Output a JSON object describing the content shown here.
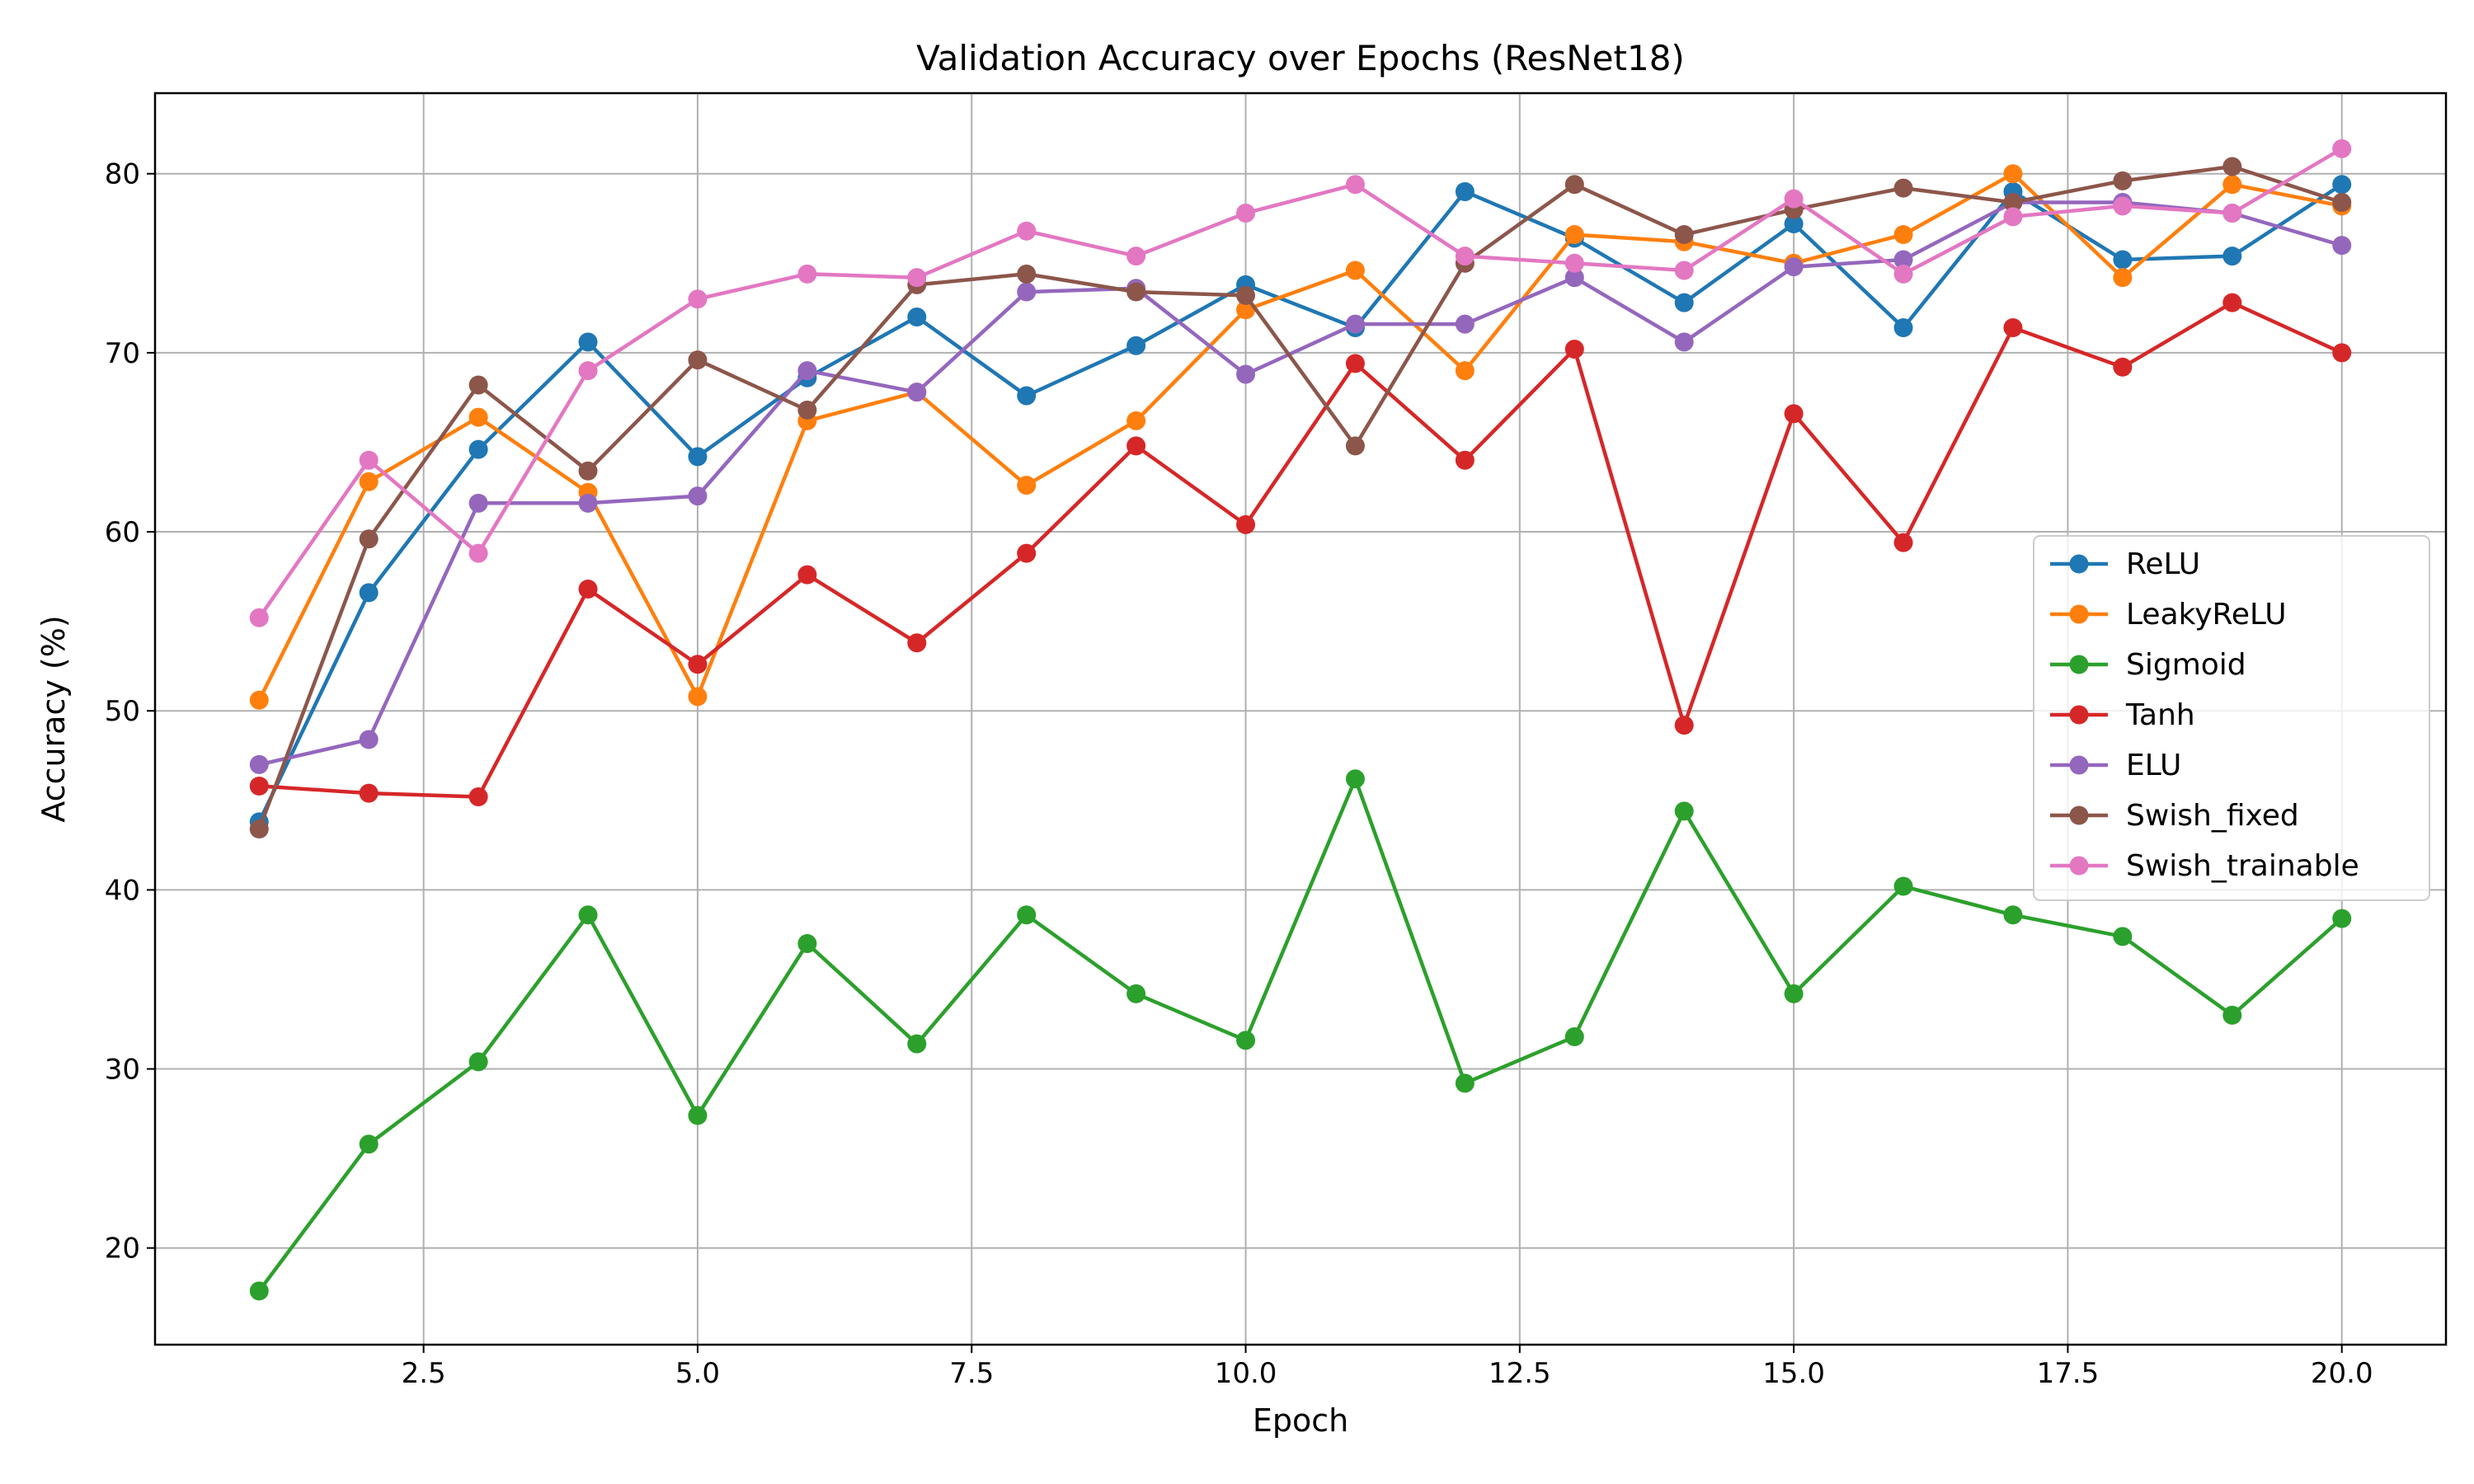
{
  "chart_data": {
    "type": "line",
    "title": "Validation Accuracy over Epochs (ResNet18)",
    "xlabel": "Epoch",
    "ylabel": "Accuracy (%)",
    "xlim": [
      0.05,
      20.95
    ],
    "ylim": [
      14.6,
      84.5
    ],
    "xticks": [
      2.5,
      5.0,
      7.5,
      10.0,
      12.5,
      15.0,
      17.5,
      20.0
    ],
    "xtick_labels": [
      "2.5",
      "5.0",
      "7.5",
      "10.0",
      "12.5",
      "15.0",
      "17.5",
      "20.0"
    ],
    "yticks": [
      20,
      30,
      40,
      50,
      60,
      70,
      80
    ],
    "ytick_labels": [
      "20",
      "30",
      "40",
      "50",
      "60",
      "70",
      "80"
    ],
    "grid": true,
    "legend_position": "center-right",
    "x": [
      1,
      2,
      3,
      4,
      5,
      6,
      7,
      8,
      9,
      10,
      11,
      12,
      13,
      14,
      15,
      16,
      17,
      18,
      19,
      20
    ],
    "series": [
      {
        "name": "ReLU",
        "color": "#1f77b4",
        "values": [
          43.8,
          56.6,
          64.6,
          70.6,
          64.2,
          68.6,
          72.0,
          67.6,
          70.4,
          73.8,
          71.4,
          79.0,
          76.4,
          72.8,
          77.2,
          71.4,
          79.0,
          75.2,
          75.4,
          79.4
        ]
      },
      {
        "name": "LeakyReLU",
        "color": "#ff7f0e",
        "values": [
          50.6,
          62.8,
          66.4,
          62.2,
          50.8,
          66.2,
          67.8,
          62.6,
          66.2,
          72.4,
          74.6,
          69.0,
          76.6,
          76.2,
          75.0,
          76.6,
          80.0,
          74.2,
          79.4,
          78.2
        ]
      },
      {
        "name": "Sigmoid",
        "color": "#2ca02c",
        "values": [
          17.6,
          25.8,
          30.4,
          38.6,
          27.4,
          37.0,
          31.4,
          38.6,
          34.2,
          31.6,
          46.2,
          29.2,
          31.8,
          44.4,
          34.2,
          40.2,
          38.6,
          37.4,
          33.0,
          38.4
        ]
      },
      {
        "name": "Tanh",
        "color": "#d62728",
        "values": [
          45.8,
          45.4,
          45.2,
          56.8,
          52.6,
          57.6,
          53.8,
          58.8,
          64.8,
          60.4,
          69.4,
          64.0,
          70.2,
          49.2,
          66.6,
          59.4,
          71.4,
          69.2,
          72.8,
          70.0
        ]
      },
      {
        "name": "ELU",
        "color": "#9467bd",
        "values": [
          47.0,
          48.4,
          61.6,
          61.6,
          62.0,
          69.0,
          67.8,
          73.4,
          73.6,
          68.8,
          71.6,
          71.6,
          74.2,
          70.6,
          74.8,
          75.2,
          78.4,
          78.4,
          77.8,
          76.0
        ]
      },
      {
        "name": "Swish_fixed",
        "color": "#8c564b",
        "values": [
          43.4,
          59.6,
          68.2,
          63.4,
          69.6,
          66.8,
          73.8,
          74.4,
          73.4,
          73.2,
          64.8,
          75.0,
          79.4,
          76.6,
          78.0,
          79.2,
          78.4,
          79.6,
          80.4,
          78.4
        ]
      },
      {
        "name": "Swish_trainable",
        "color": "#e377c2",
        "values": [
          55.2,
          64.0,
          58.8,
          69.0,
          73.0,
          74.4,
          74.2,
          76.8,
          75.4,
          77.8,
          79.4,
          75.4,
          75.0,
          74.6,
          78.6,
          74.4,
          77.6,
          78.2,
          77.8,
          81.4
        ]
      }
    ]
  }
}
